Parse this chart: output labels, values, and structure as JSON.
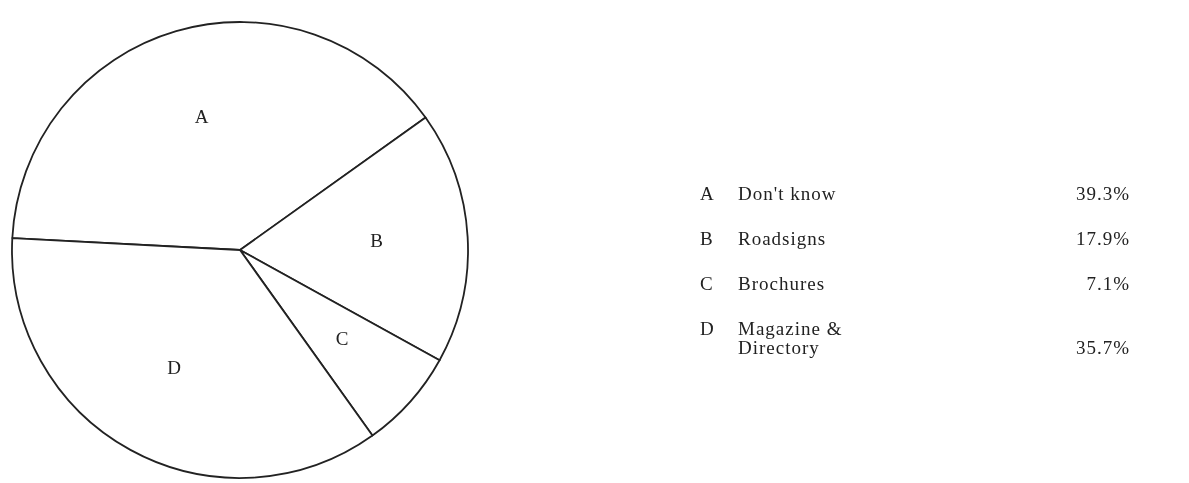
{
  "chart_data": {
    "type": "pie",
    "categories": [
      "A",
      "B",
      "C",
      "D"
    ],
    "values": [
      39.3,
      17.9,
      7.1,
      35.7
    ],
    "colors": [
      "#ffffff",
      "#ffffff",
      "#ffffff",
      "#ffffff"
    ],
    "annotations": [
      "Don't know",
      "Roadsigns",
      "Brochures",
      "Magazine & Directory",
      "39.3%",
      "17.9%",
      "7.1%",
      "35.7%"
    ]
  }
}
